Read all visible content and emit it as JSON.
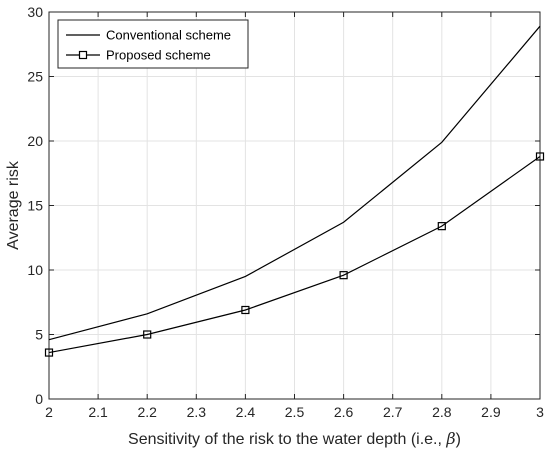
{
  "chart_data": {
    "type": "line",
    "title": "",
    "xlabel": "Sensitivity of the risk to the water depth (i.e., ",
    "xlabel_symbol": "β",
    "ylabel": "Average risk",
    "xlim": [
      2,
      3
    ],
    "ylim": [
      0,
      30
    ],
    "xticks": [
      "2",
      "2.1",
      "2.2",
      "2.3",
      "2.4",
      "2.5",
      "2.6",
      "2.7",
      "2.8",
      "2.9",
      "3"
    ],
    "yticks": [
      "0",
      "5",
      "10",
      "15",
      "20",
      "25",
      "30"
    ],
    "grid": true,
    "legend_position": "top-left",
    "x": [
      2,
      2.2,
      2.4,
      2.6,
      2.8,
      3
    ],
    "series": [
      {
        "name": "Conventional scheme",
        "values": [
          4.6,
          6.6,
          9.5,
          13.7,
          19.9,
          28.9
        ],
        "marker": "none",
        "color": "#000000"
      },
      {
        "name": "Proposed scheme",
        "values": [
          3.6,
          5.0,
          6.9,
          9.6,
          13.4,
          18.8
        ],
        "marker": "square",
        "color": "#000000"
      }
    ]
  }
}
